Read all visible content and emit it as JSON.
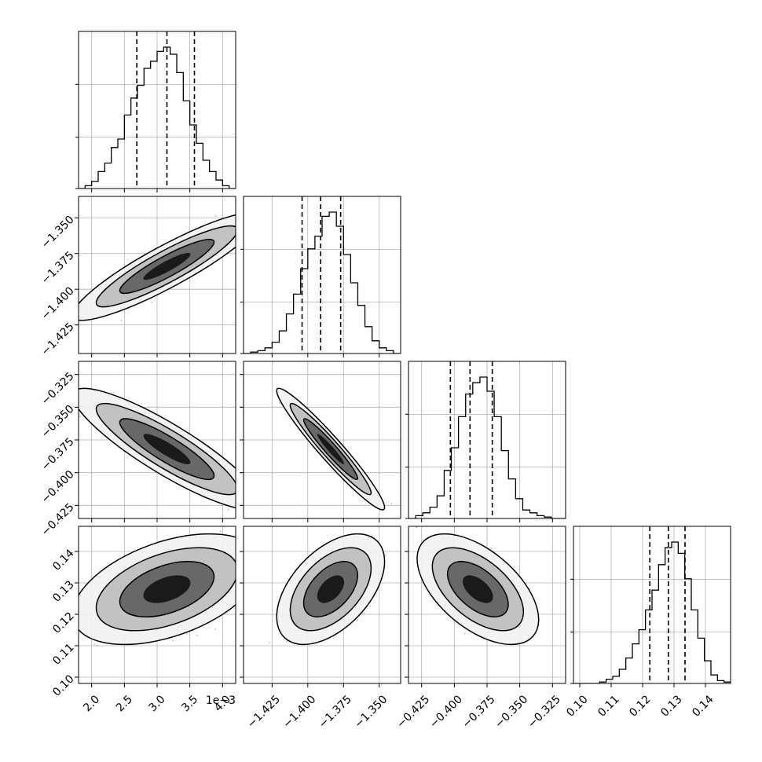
{
  "chart_data": {
    "type": "corner",
    "title": "",
    "parameters": [
      {
        "axis_range": [
          0.0018,
          0.0042
        ],
        "scale": 0.001,
        "ticks": [
          2.0,
          2.5,
          3.0,
          3.5,
          4.0
        ],
        "tick_labels": [
          "2.0",
          "2.5",
          "3.0",
          "3.5",
          "4.0"
        ],
        "offset_label": "1e−3",
        "quantiles": [
          0.00269,
          0.00315,
          0.00357
        ],
        "hist_edges": [
          0.0018,
          0.0042
        ],
        "hist_counts": [
          0,
          2,
          5,
          12,
          18,
          29,
          35,
          52,
          64,
          73,
          85,
          90,
          97,
          100,
          95,
          82,
          62,
          45,
          32,
          20,
          12,
          6,
          2,
          0
        ]
      },
      {
        "axis_range": [
          -1.445,
          -1.335
        ],
        "ticks": [
          -1.425,
          -1.4,
          -1.375,
          -1.35
        ],
        "tick_labels": [
          "−1.425",
          "−1.400",
          "−1.375",
          "−1.350"
        ],
        "quantiles": [
          -1.404,
          -1.391,
          -1.377
        ],
        "hist_edges": [
          -1.445,
          -1.335
        ],
        "hist_counts": [
          0,
          1,
          2,
          4,
          8,
          16,
          28,
          42,
          60,
          74,
          83,
          97,
          100,
          90,
          70,
          50,
          34,
          19,
          9,
          4,
          2,
          0
        ]
      },
      {
        "axis_range": [
          -0.435,
          -0.315
        ],
        "ticks": [
          -0.425,
          -0.4,
          -0.375,
          -0.35,
          -0.325
        ],
        "tick_labels": [
          "−0.425",
          "−0.400",
          "−0.375",
          "−0.350",
          "−0.325"
        ],
        "quantiles": [
          -0.403,
          -0.388,
          -0.371
        ],
        "hist_edges": [
          -0.435,
          -0.315
        ],
        "hist_counts": [
          0,
          2,
          4,
          8,
          16,
          34,
          50,
          72,
          88,
          96,
          100,
          90,
          72,
          48,
          28,
          14,
          6,
          4,
          2,
          1,
          0,
          0
        ]
      },
      {
        "axis_range": [
          0.098,
          0.148
        ],
        "ticks": [
          0.1,
          0.11,
          0.12,
          0.13,
          0.14
        ],
        "tick_labels": [
          "0.10",
          "0.11",
          "0.12",
          "0.13",
          "0.14"
        ],
        "quantiles": [
          0.1223,
          0.1282,
          0.1335
        ],
        "hist_edges": [
          0.098,
          0.148
        ],
        "hist_counts": [
          0,
          0,
          0,
          0,
          1,
          3,
          5,
          10,
          18,
          28,
          38,
          52,
          66,
          84,
          96,
          100,
          92,
          74,
          52,
          32,
          16,
          6,
          2,
          1
        ]
      }
    ],
    "pairs": [
      {
        "row": 1,
        "col": 0,
        "mean": [
          0.00315,
          -1.384
        ],
        "sd": [
          0.00045,
          0.0118
        ],
        "corr": 0.9,
        "level_colors": [
          "#f2f2f2",
          "#bdbdbd",
          "#5e5e5e",
          "#121212"
        ]
      },
      {
        "row": 2,
        "col": 0,
        "mean": [
          0.00315,
          -0.382
        ],
        "sd": [
          0.00045,
          0.0145
        ],
        "corr": -0.88,
        "level_colors": [
          "#f2f2f2",
          "#bdbdbd",
          "#5e5e5e",
          "#121212"
        ]
      },
      {
        "row": 2,
        "col": 1,
        "mean": [
          -1.384,
          -0.382
        ],
        "sd": [
          0.0118,
          0.0145
        ],
        "corr": -0.96,
        "level_colors": [
          "#f2f2f2",
          "#bdbdbd",
          "#5e5e5e",
          "#121212"
        ]
      },
      {
        "row": 3,
        "col": 0,
        "mean": [
          0.00315,
          0.128
        ],
        "sd": [
          0.00045,
          0.0055
        ],
        "corr": 0.45,
        "level_colors": [
          "#f2f2f2",
          "#bdbdbd",
          "#5e5e5e",
          "#121212"
        ]
      },
      {
        "row": 3,
        "col": 1,
        "mean": [
          -1.384,
          0.128
        ],
        "sd": [
          0.0118,
          0.0055
        ],
        "corr": 0.5,
        "level_colors": [
          "#f2f2f2",
          "#bdbdbd",
          "#5e5e5e",
          "#121212"
        ]
      },
      {
        "row": 3,
        "col": 2,
        "mean": [
          -0.382,
          0.128
        ],
        "sd": [
          0.0145,
          0.0055
        ],
        "corr": -0.55,
        "level_colors": [
          "#f2f2f2",
          "#bdbdbd",
          "#5e5e5e",
          "#121212"
        ]
      }
    ],
    "contour_sigmas": [
      0.5,
      1.0,
      1.5,
      2.0
    ],
    "grid": true,
    "line_color": "#000000"
  }
}
